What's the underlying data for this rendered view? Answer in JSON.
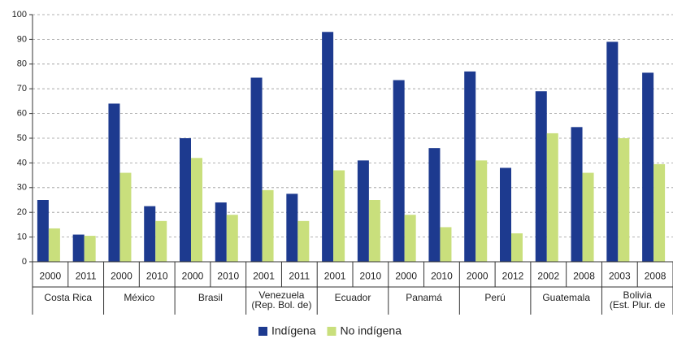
{
  "chart_data": {
    "type": "bar",
    "categories": [
      "2000",
      "2011",
      "2000",
      "2010",
      "2000",
      "2010",
      "2001",
      "2011",
      "2001",
      "2010",
      "2000",
      "2010",
      "2000",
      "2012",
      "2002",
      "2008",
      "2003",
      "2008"
    ],
    "groups": [
      [
        "Costa Rica"
      ],
      [
        "México"
      ],
      [
        "Brasil"
      ],
      [
        "Venezuela",
        "(Rep. Bol. de)"
      ],
      [
        "Ecuador"
      ],
      [
        "Panamá"
      ],
      [
        "Perú"
      ],
      [
        "Guatemala"
      ],
      [
        "Bolivia",
        "(Est. Plur. de"
      ]
    ],
    "series": [
      {
        "name": "Indígena",
        "color": "#1d3a8f",
        "values": [
          25,
          11,
          64,
          22.5,
          50,
          24,
          74.5,
          27.5,
          93,
          41,
          73.5,
          46,
          77,
          38,
          69,
          54.5,
          89,
          76.5
        ]
      },
      {
        "name": "No indígena",
        "color": "#c9df7c",
        "values": [
          13.5,
          10.5,
          36,
          16.5,
          42,
          19,
          29,
          16.5,
          37,
          25,
          19,
          14,
          41,
          11.5,
          52,
          36,
          50,
          39.5
        ]
      }
    ],
    "ylim": [
      0,
      100
    ],
    "yticks": [
      0,
      10,
      20,
      30,
      40,
      50,
      60,
      70,
      80,
      90,
      100
    ],
    "grid": true,
    "legend": "bottom"
  }
}
